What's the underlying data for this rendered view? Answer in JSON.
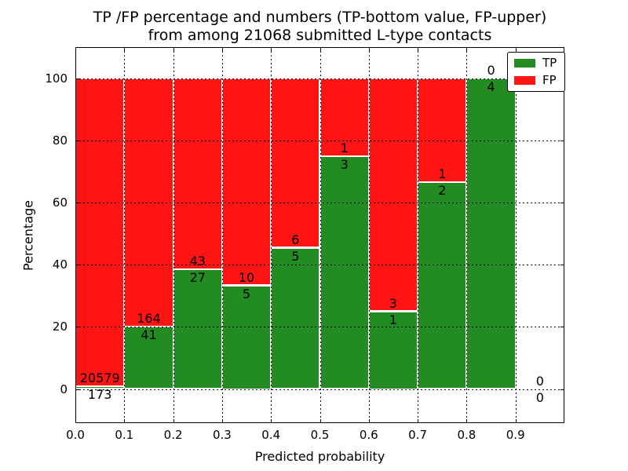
{
  "title": {
    "line1": "TP /FP percentage and numbers (TP-bottom value, FP-upper)",
    "line2": "from among 21068 submitted L-type contacts"
  },
  "x_axis": {
    "label": "Predicted probability",
    "ticks": [
      "0.0",
      "0.1",
      "0.2",
      "0.3",
      "0.4",
      "0.5",
      "0.6",
      "0.7",
      "0.8",
      "0.9"
    ]
  },
  "y_axis": {
    "label": "Percentage",
    "ticks": [
      "0",
      "20",
      "40",
      "60",
      "80",
      "100"
    ]
  },
  "legend": {
    "items": [
      {
        "label": "TP",
        "color": "#228b22"
      },
      {
        "label": "FP",
        "color": "#ff1414"
      }
    ]
  },
  "chart_data": {
    "type": "bar",
    "subtype": "stacked-100-percent-with-counts",
    "title": "TP /FP percentage and numbers (TP-bottom value, FP-upper) from among 21068 submitted L-type contacts",
    "xlabel": "Predicted probability",
    "ylabel": "Percentage",
    "total_contacts": 21068,
    "bin_width": 0.1,
    "bin_starts": [
      0.0,
      0.1,
      0.2,
      0.3,
      0.4,
      0.5,
      0.6,
      0.7,
      0.8,
      0.9
    ],
    "series": [
      {
        "name": "TP",
        "color": "#228b22",
        "counts": [
          173,
          41,
          27,
          5,
          5,
          3,
          1,
          2,
          4,
          0
        ]
      },
      {
        "name": "FP",
        "color": "#ff1414",
        "counts": [
          20579,
          164,
          43,
          10,
          6,
          1,
          3,
          1,
          0,
          0
        ]
      }
    ],
    "tp_percent_by_bin": [
      0.83,
      20.0,
      38.57,
      33.33,
      45.45,
      75.0,
      25.0,
      66.67,
      100.0,
      null
    ],
    "xlim": [
      0.0,
      1.0
    ],
    "ylim": [
      -11,
      110
    ],
    "y_gridlines": [
      0,
      20,
      40,
      60,
      80,
      100
    ],
    "grid_style": "dotted",
    "legend_position": "upper right"
  }
}
